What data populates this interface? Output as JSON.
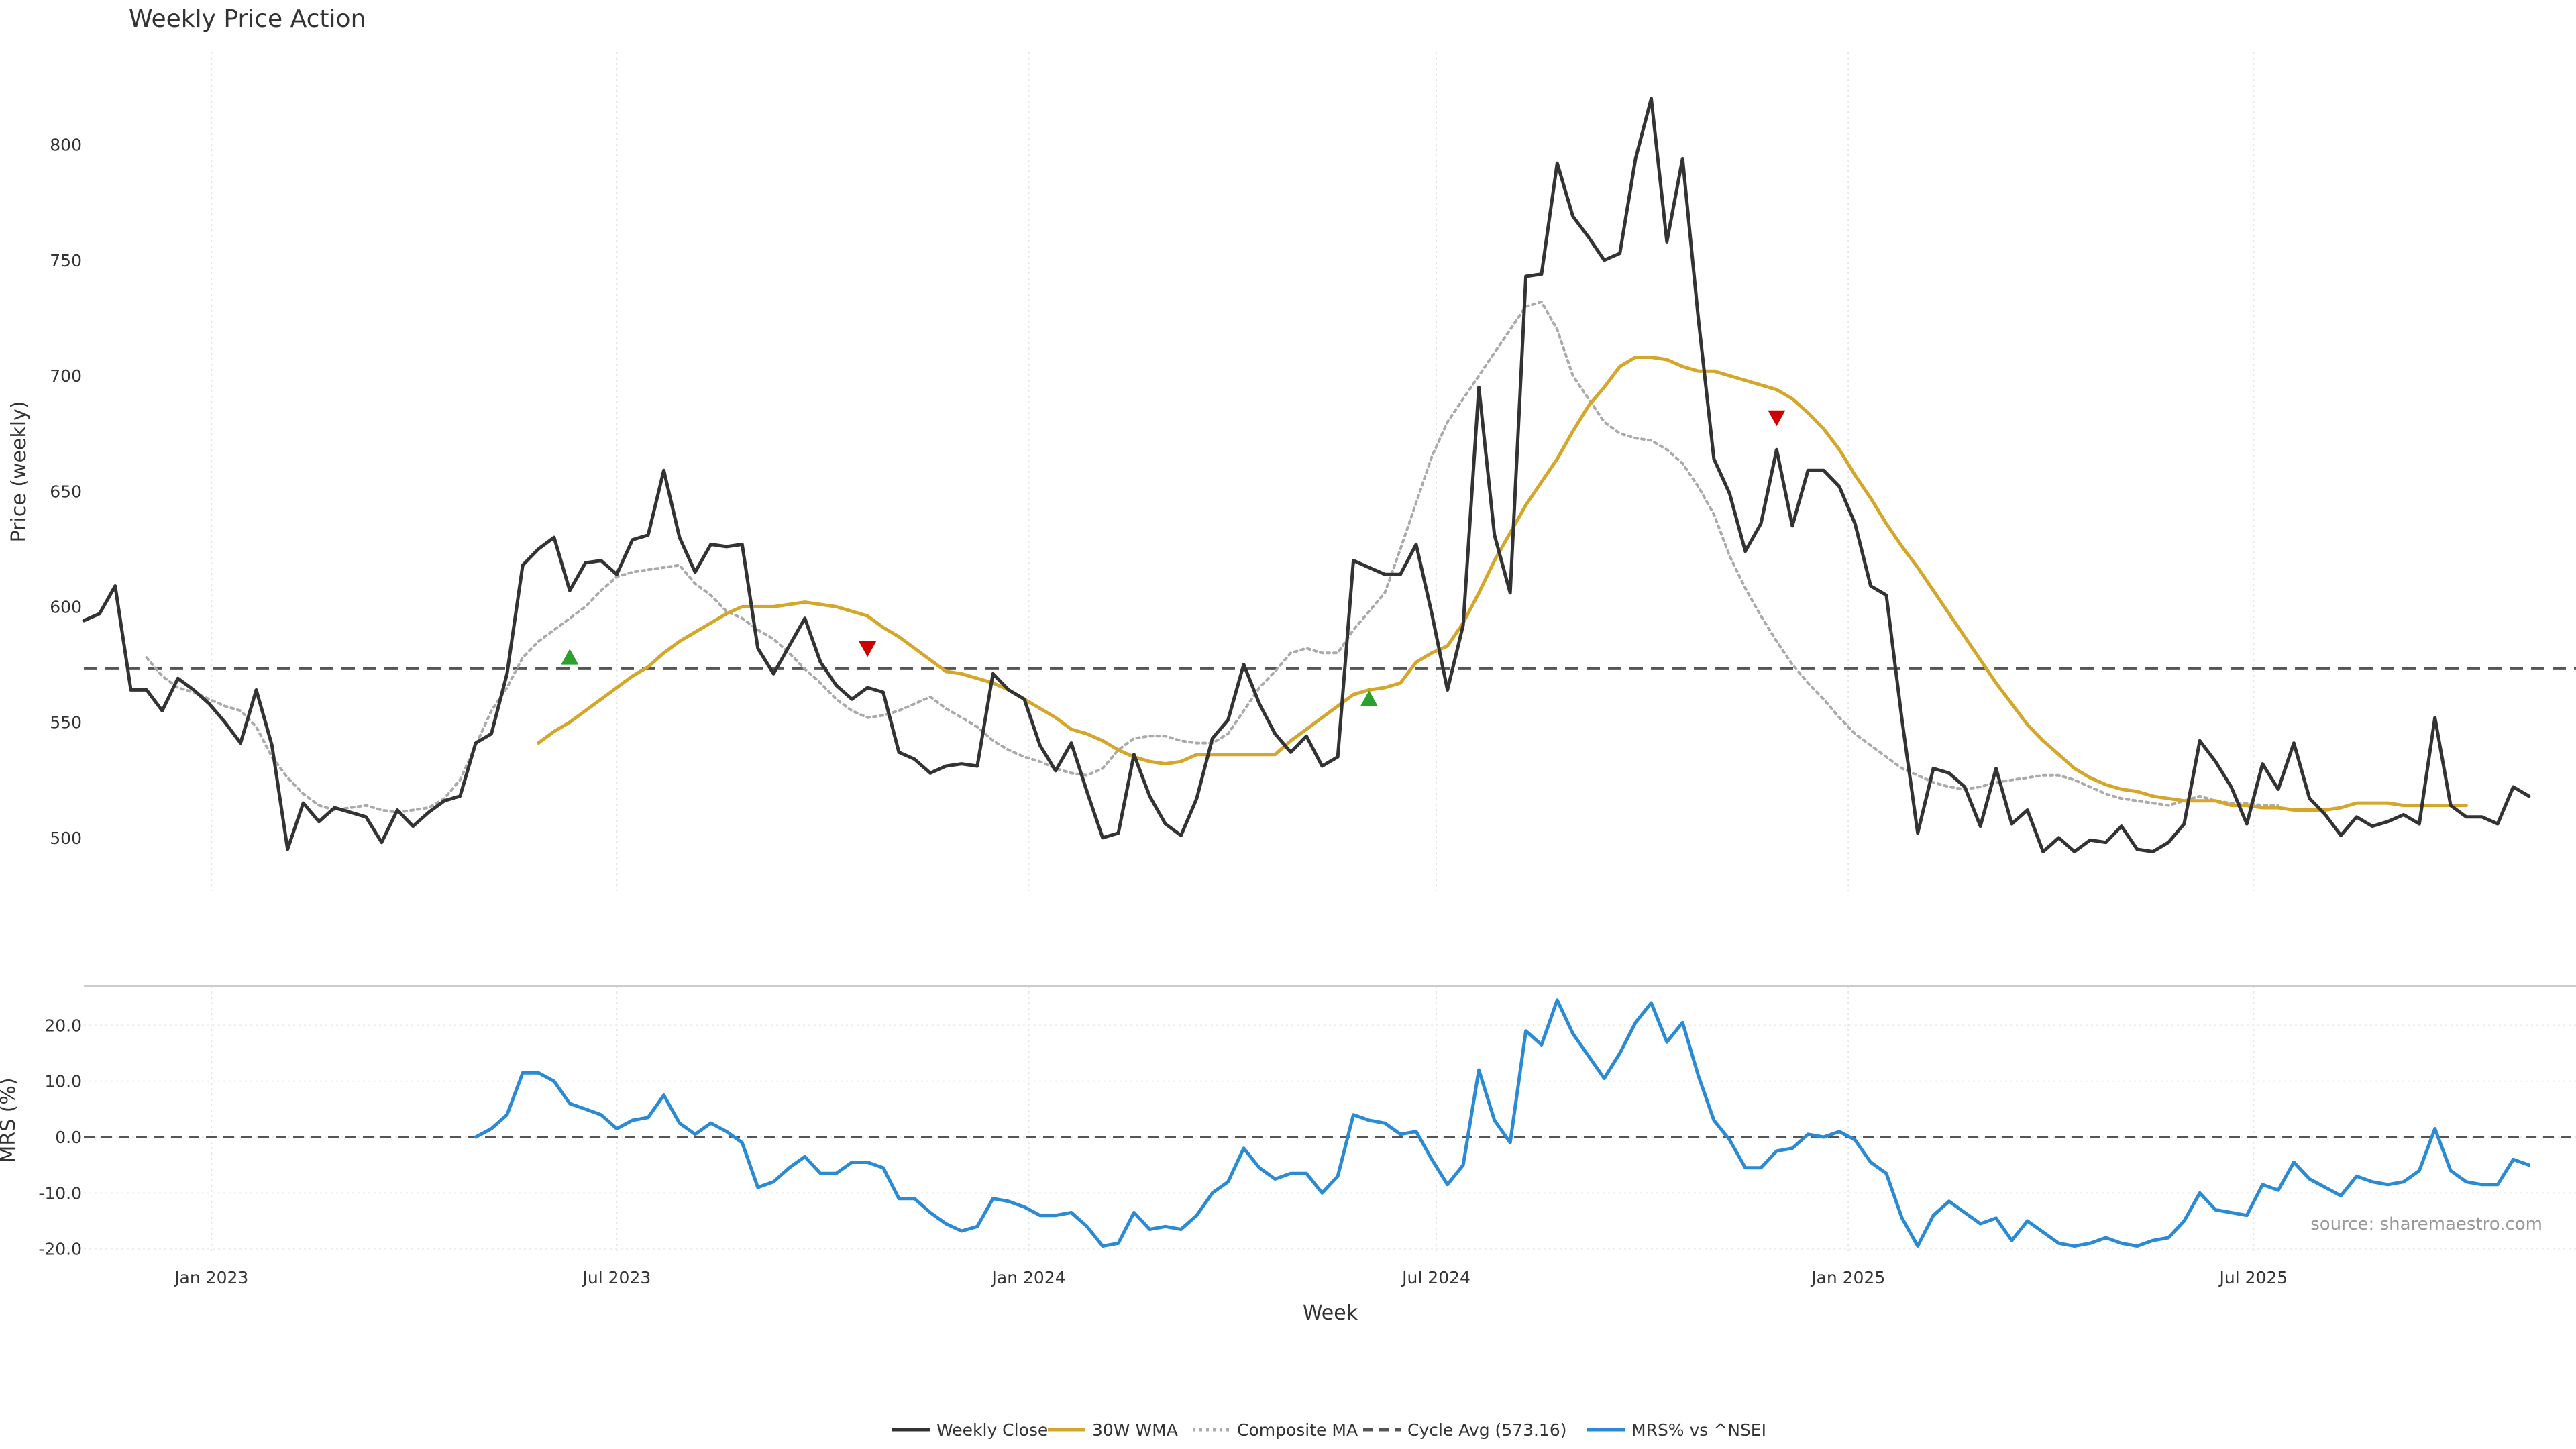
{
  "chart_data": {
    "type": "line",
    "title": "Weekly Price Action",
    "x_start": "2022-11-05",
    "x_step_days": 7,
    "x_range": [
      "2022-11-05",
      "2025-11-22"
    ],
    "x_ticks": [
      {
        "date": "2023-01-01",
        "label": "Jan 2023"
      },
      {
        "date": "2023-07-01",
        "label": "Jul 2023"
      },
      {
        "date": "2024-01-01",
        "label": "Jan 2024"
      },
      {
        "date": "2024-07-01",
        "label": "Jul 2024"
      },
      {
        "date": "2025-01-01",
        "label": "Jan 2025"
      },
      {
        "date": "2025-07-01",
        "label": "Jul 2025"
      }
    ],
    "xlabel": "Week",
    "grid": true,
    "legend_position": "bottom-center",
    "source_note": "source: sharemaestro.com",
    "price_panel": {
      "ylabel": "Price (weekly)",
      "ylim": [
        477,
        840
      ],
      "yticks": [
        500,
        550,
        600,
        650,
        700,
        750,
        800
      ],
      "cycle_avg": 573.16,
      "series": [
        {
          "name": "Weekly Close",
          "color": "#333333",
          "style": "solid",
          "start_index": 0,
          "values": [
            594,
            597,
            609,
            564,
            564,
            555,
            569,
            564,
            558,
            550,
            541,
            564,
            540,
            495,
            515,
            507,
            513,
            511,
            509,
            498,
            512,
            505,
            511,
            516,
            518,
            541,
            545,
            571,
            618,
            625,
            630,
            607,
            619,
            620,
            614,
            629,
            631,
            659,
            630,
            615,
            627,
            626,
            627,
            582,
            571,
            583,
            595,
            576,
            566,
            560,
            565,
            563,
            537,
            534,
            528,
            531,
            532,
            531,
            571,
            564,
            560,
            540,
            529,
            541,
            520,
            500,
            502,
            536,
            518,
            506,
            501,
            517,
            543,
            551,
            575,
            558,
            545,
            537,
            544,
            531,
            535,
            620,
            617,
            614,
            614,
            627,
            597,
            564,
            592,
            695,
            631,
            606,
            743,
            744,
            792,
            769,
            760,
            750,
            753,
            794,
            820,
            758,
            794,
            725,
            664,
            649,
            624,
            636,
            668,
            635,
            659,
            659,
            652,
            636,
            609,
            605,
            551,
            502,
            530,
            528,
            522,
            505,
            530,
            506,
            512,
            494,
            500,
            494,
            499,
            498,
            505,
            495,
            494,
            498,
            506,
            542,
            533,
            522,
            506,
            532,
            521,
            541,
            517,
            510,
            501,
            509,
            505,
            507,
            510,
            506,
            552,
            514,
            509,
            509,
            506,
            522,
            518
          ]
        },
        {
          "name": "30W WMA",
          "color": "#d4a62a",
          "style": "solid",
          "start_index": 29,
          "values": [
            541,
            546,
            550,
            555,
            560,
            565,
            570,
            574,
            580,
            585,
            589,
            593,
            597,
            600,
            600,
            600,
            601,
            602,
            601,
            600,
            598,
            596,
            591,
            587,
            582,
            577,
            572,
            571,
            569,
            567,
            564,
            560,
            556,
            552,
            547,
            545,
            542,
            538,
            535,
            533,
            532,
            533,
            536,
            536,
            536,
            536,
            536,
            536,
            542,
            547,
            552,
            557,
            562,
            564,
            565,
            567,
            576,
            580,
            583,
            593,
            606,
            620,
            632,
            644,
            654,
            664,
            676,
            687,
            695,
            704,
            708,
            708,
            707,
            704,
            702,
            702,
            700,
            698,
            696,
            694,
            690,
            684,
            677,
            668,
            657,
            647,
            636,
            626,
            617,
            607,
            597,
            587,
            577,
            567,
            558,
            549,
            542,
            536,
            530,
            526,
            523,
            521,
            520,
            518,
            517,
            516,
            516,
            516,
            514,
            514,
            513,
            513,
            512,
            512,
            512,
            513,
            515,
            515,
            515,
            514,
            514,
            514,
            514,
            514
          ]
        },
        {
          "name": "Composite MA",
          "color": "#aaaaaa",
          "style": "dotted",
          "start_index": 4,
          "values": [
            578,
            570,
            565,
            563,
            560,
            557,
            555,
            548,
            535,
            526,
            519,
            514,
            512,
            513,
            514,
            512,
            511,
            512,
            513,
            517,
            525,
            540,
            555,
            565,
            578,
            585,
            590,
            595,
            600,
            607,
            613,
            615,
            616,
            617,
            618,
            610,
            605,
            598,
            595,
            590,
            586,
            580,
            573,
            567,
            560,
            555,
            552,
            553,
            555,
            558,
            561,
            556,
            552,
            548,
            542,
            538,
            535,
            533,
            530,
            528,
            527,
            530,
            538,
            543,
            544,
            544,
            542,
            541,
            541,
            545,
            555,
            565,
            572,
            580,
            582,
            580,
            580,
            590,
            598,
            606,
            625,
            645,
            665,
            680,
            690,
            700,
            710,
            720,
            730,
            732,
            720,
            700,
            690,
            680,
            675,
            673,
            672,
            668,
            662,
            652,
            640,
            622,
            608,
            596,
            585,
            575,
            567,
            560,
            552,
            545,
            540,
            535,
            530,
            527,
            524,
            522,
            521,
            522,
            524,
            525,
            526,
            527,
            527,
            525,
            522,
            519,
            517,
            516,
            515,
            514,
            516,
            518,
            516,
            515,
            515,
            514,
            514
          ]
        }
      ],
      "markers": [
        {
          "type": "buy",
          "index": 31,
          "value": 578,
          "color": "#2ca02c"
        },
        {
          "type": "sell",
          "index": 50,
          "value": 582,
          "color": "#cc0000"
        },
        {
          "type": "buy",
          "index": 82,
          "value": 560,
          "color": "#2ca02c"
        },
        {
          "type": "sell",
          "index": 108,
          "value": 682,
          "color": "#cc0000"
        }
      ]
    },
    "mrs_panel": {
      "ylabel": "MRS (%)",
      "ylim": [
        -21,
        27
      ],
      "yticks": [
        -20,
        -10,
        0,
        10,
        20
      ],
      "ytick_labels": [
        "-20.0",
        "-10.0",
        "0.0",
        "10.0",
        "20.0"
      ],
      "baseline": 0,
      "series": [
        {
          "name": "MRS% vs ^NSEI",
          "color": "#2a8ad4",
          "style": "solid",
          "start_index": 25,
          "values": [
            0.0,
            1.5,
            4.0,
            11.5,
            11.5,
            10.0,
            6.0,
            5.0,
            4.0,
            1.5,
            3.0,
            3.5,
            7.5,
            2.5,
            0.5,
            2.5,
            1.0,
            -1.0,
            -9.0,
            -8.0,
            -5.5,
            -3.5,
            -6.5,
            -6.5,
            -4.5,
            -4.5,
            -5.5,
            -11.0,
            -11.0,
            -13.5,
            -15.5,
            -16.8,
            -16.0,
            -11.0,
            -11.5,
            -12.5,
            -14.0,
            -14.0,
            -13.5,
            -16.0,
            -19.5,
            -19.0,
            -13.5,
            -16.5,
            -16.0,
            -16.5,
            -14.0,
            -10.0,
            -8.0,
            -2.0,
            -5.5,
            -7.5,
            -6.5,
            -6.5,
            -10.0,
            -7.0,
            4.0,
            3.0,
            2.5,
            0.5,
            1.0,
            -4.0,
            -8.5,
            -5.0,
            12.0,
            3.0,
            -1.0,
            19.0,
            16.5,
            24.5,
            18.5,
            14.5,
            10.5,
            15.0,
            20.5,
            24.0,
            17.0,
            20.5,
            11.0,
            3.0,
            -0.5,
            -5.5,
            -5.5,
            -2.5,
            -2.0,
            0.5,
            0.0,
            1.0,
            -0.5,
            -4.5,
            -6.5,
            -14.5,
            -19.5,
            -14.0,
            -11.5,
            -13.5,
            -15.5,
            -14.5,
            -18.5,
            -15.0,
            -17.0,
            -19.0,
            -19.5,
            -19.0,
            -18.0,
            -19.0,
            -19.5,
            -18.5,
            -18.0,
            -15.0,
            -10.0,
            -13.0,
            -13.5,
            -14.0,
            -8.5,
            -9.5,
            -4.5,
            -7.5,
            -9.0,
            -10.5,
            -7.0,
            -8.0,
            -8.5,
            -8.0,
            -6.0,
            1.5,
            -6.0,
            -8.0,
            -8.5,
            -8.5,
            -4.0,
            -5.0
          ]
        }
      ]
    },
    "legend": [
      {
        "label": "Weekly Close",
        "color": "#333333",
        "style": "solid"
      },
      {
        "label": "30W WMA",
        "color": "#d4a62a",
        "style": "solid"
      },
      {
        "label": "Composite MA",
        "color": "#aaaaaa",
        "style": "dotted"
      },
      {
        "label": "Cycle Avg (573.16)",
        "color": "#555555",
        "style": "dashed"
      },
      {
        "label": "MRS% vs ^NSEI",
        "color": "#2a8ad4",
        "style": "solid"
      }
    ]
  }
}
